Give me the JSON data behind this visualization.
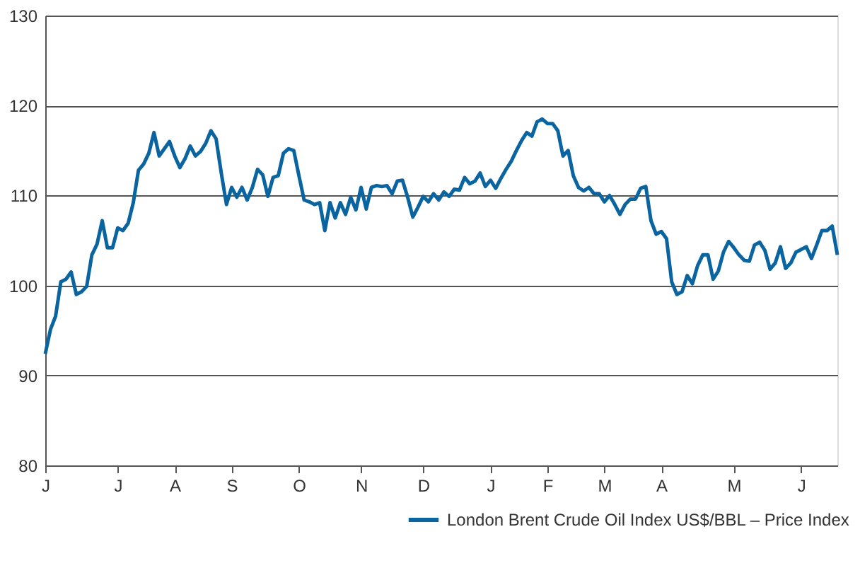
{
  "chart_data": {
    "type": "line",
    "categories": [
      "J",
      null,
      null,
      null,
      null,
      null,
      null,
      null,
      null,
      null,
      null,
      null,
      null,
      null,
      "J",
      null,
      null,
      null,
      null,
      null,
      null,
      null,
      null,
      null,
      null,
      "A",
      null,
      null,
      null,
      null,
      null,
      null,
      null,
      null,
      null,
      null,
      "S",
      null,
      null,
      null,
      null,
      null,
      null,
      null,
      null,
      null,
      null,
      null,
      null,
      "O",
      null,
      null,
      null,
      null,
      null,
      null,
      null,
      null,
      null,
      null,
      null,
      "N",
      null,
      null,
      null,
      null,
      null,
      null,
      null,
      null,
      null,
      null,
      null,
      "D",
      null,
      null,
      null,
      null,
      null,
      null,
      null,
      null,
      null,
      null,
      null,
      null,
      "J",
      null,
      null,
      null,
      null,
      null,
      null,
      null,
      null,
      null,
      null,
      "F",
      null,
      null,
      null,
      null,
      null,
      null,
      null,
      null,
      null,
      null,
      "M",
      null,
      null,
      null,
      null,
      null,
      null,
      null,
      null,
      null,
      null,
      "A",
      null,
      null,
      null,
      null,
      null,
      null,
      null,
      null,
      null,
      null,
      null,
      null,
      null,
      "M",
      null,
      null,
      null,
      null,
      null,
      null,
      null,
      null,
      null,
      null,
      null,
      null,
      "J",
      null,
      null,
      null,
      null,
      null,
      null,
      null
    ],
    "series": [
      {
        "name": "London Brent Crude Oil Index US$/BBL – Price Index",
        "color": "#0a64a0",
        "values": [
          92.4,
          95.1,
          96.6,
          100.4,
          100.7,
          101.5,
          99.0,
          99.3,
          99.9,
          103.4,
          104.6,
          107.2,
          104.2,
          104.2,
          106.4,
          106.1,
          106.9,
          109.2,
          112.8,
          113.5,
          114.7,
          117.0,
          114.4,
          115.2,
          116.0,
          114.4,
          113.1,
          114.1,
          115.5,
          114.4,
          114.9,
          115.8,
          117.2,
          116.3,
          112.5,
          109.0,
          110.9,
          109.8,
          110.9,
          109.5,
          110.9,
          112.9,
          112.3,
          109.9,
          112.0,
          112.2,
          114.7,
          115.2,
          115.0,
          112.2,
          109.5,
          109.3,
          109.0,
          109.2,
          106.1,
          109.2,
          107.5,
          109.2,
          107.9,
          109.8,
          108.4,
          110.9,
          108.5,
          110.9,
          111.1,
          111.0,
          111.1,
          110.2,
          111.6,
          111.7,
          109.8,
          107.6,
          108.7,
          109.9,
          109.3,
          110.2,
          109.5,
          110.4,
          109.9,
          110.7,
          110.6,
          112.0,
          111.3,
          111.6,
          112.5,
          111.0,
          111.7,
          110.8,
          111.9,
          112.9,
          113.8,
          115.0,
          116.1,
          117.0,
          116.6,
          118.2,
          118.5,
          118.0,
          118.0,
          117.2,
          114.4,
          115.0,
          112.2,
          110.9,
          110.5,
          110.9,
          110.2,
          110.2,
          109.3,
          110.0,
          109.0,
          107.9,
          109.0,
          109.6,
          109.6,
          110.8,
          111.0,
          107.2,
          105.7,
          106.0,
          105.2,
          100.4,
          99.0,
          99.3,
          101.1,
          100.2,
          102.2,
          103.4,
          103.4,
          100.7,
          101.6,
          103.7,
          104.9,
          104.2,
          103.4,
          102.8,
          102.7,
          104.5,
          104.8,
          103.9,
          101.8,
          102.5,
          104.3,
          101.9,
          102.5,
          103.7,
          104.0,
          104.3,
          103.0,
          104.5,
          106.1,
          106.1,
          106.6,
          103.4
        ]
      }
    ],
    "ylim": [
      80,
      130
    ],
    "yticks": [
      80,
      90,
      100,
      110,
      120,
      130
    ],
    "grid": "y",
    "legend": "bottom right",
    "marker": "none",
    "line_style": "solid"
  }
}
